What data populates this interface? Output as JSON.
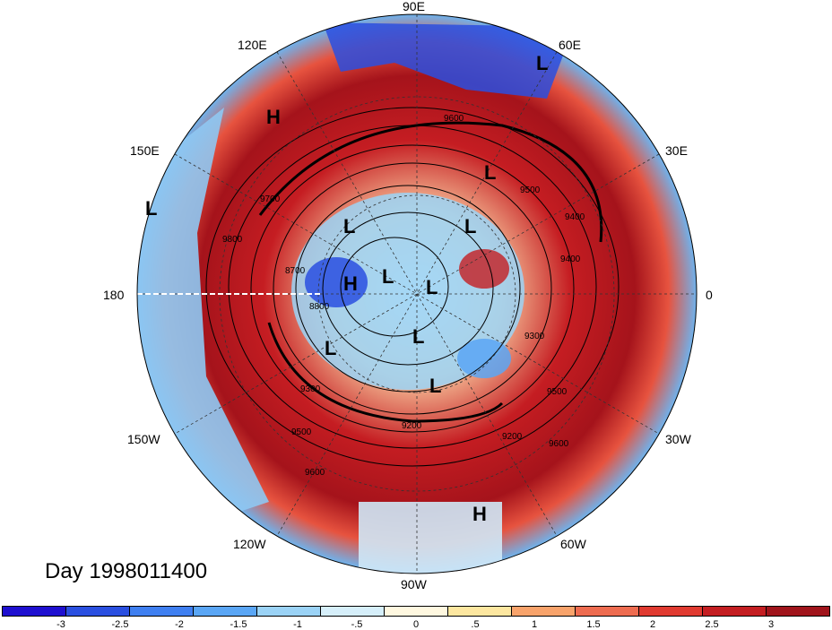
{
  "map": {
    "projection": "north-polar-stereographic",
    "date_label": "Day 1998011400",
    "longitude_labels": [
      "90E",
      "120E",
      "60E",
      "150E",
      "30E",
      "180",
      "0",
      "150W",
      "30W",
      "120W",
      "60W",
      "90W"
    ],
    "contour_labels": [
      "9600",
      "9700",
      "9800",
      "9500",
      "9400",
      "9300",
      "9200",
      "9500",
      "9600",
      "9300",
      "9400",
      "9200",
      "8700",
      "8800",
      "9500",
      "9600"
    ],
    "pressure_centers": [
      "H",
      "L",
      "L",
      "L",
      "L",
      "L",
      "H",
      "L",
      "L",
      "L",
      "L",
      "L",
      "H"
    ]
  },
  "colorbar": {
    "colors": [
      "#1e0fd0",
      "#2a4fe0",
      "#3f7ff0",
      "#5aa6f5",
      "#9bd3f6",
      "#d6effa",
      "#fff8e0",
      "#fde7a0",
      "#f8a36b",
      "#ee6c50",
      "#e03a30",
      "#c41e22",
      "#a0141b"
    ],
    "tick_labels": [
      "-3",
      "-2.5",
      "-2",
      "-1.5",
      "-1",
      "-.5",
      "0",
      ".5",
      "1",
      "1.5",
      "2",
      "2.5",
      "3"
    ]
  }
}
